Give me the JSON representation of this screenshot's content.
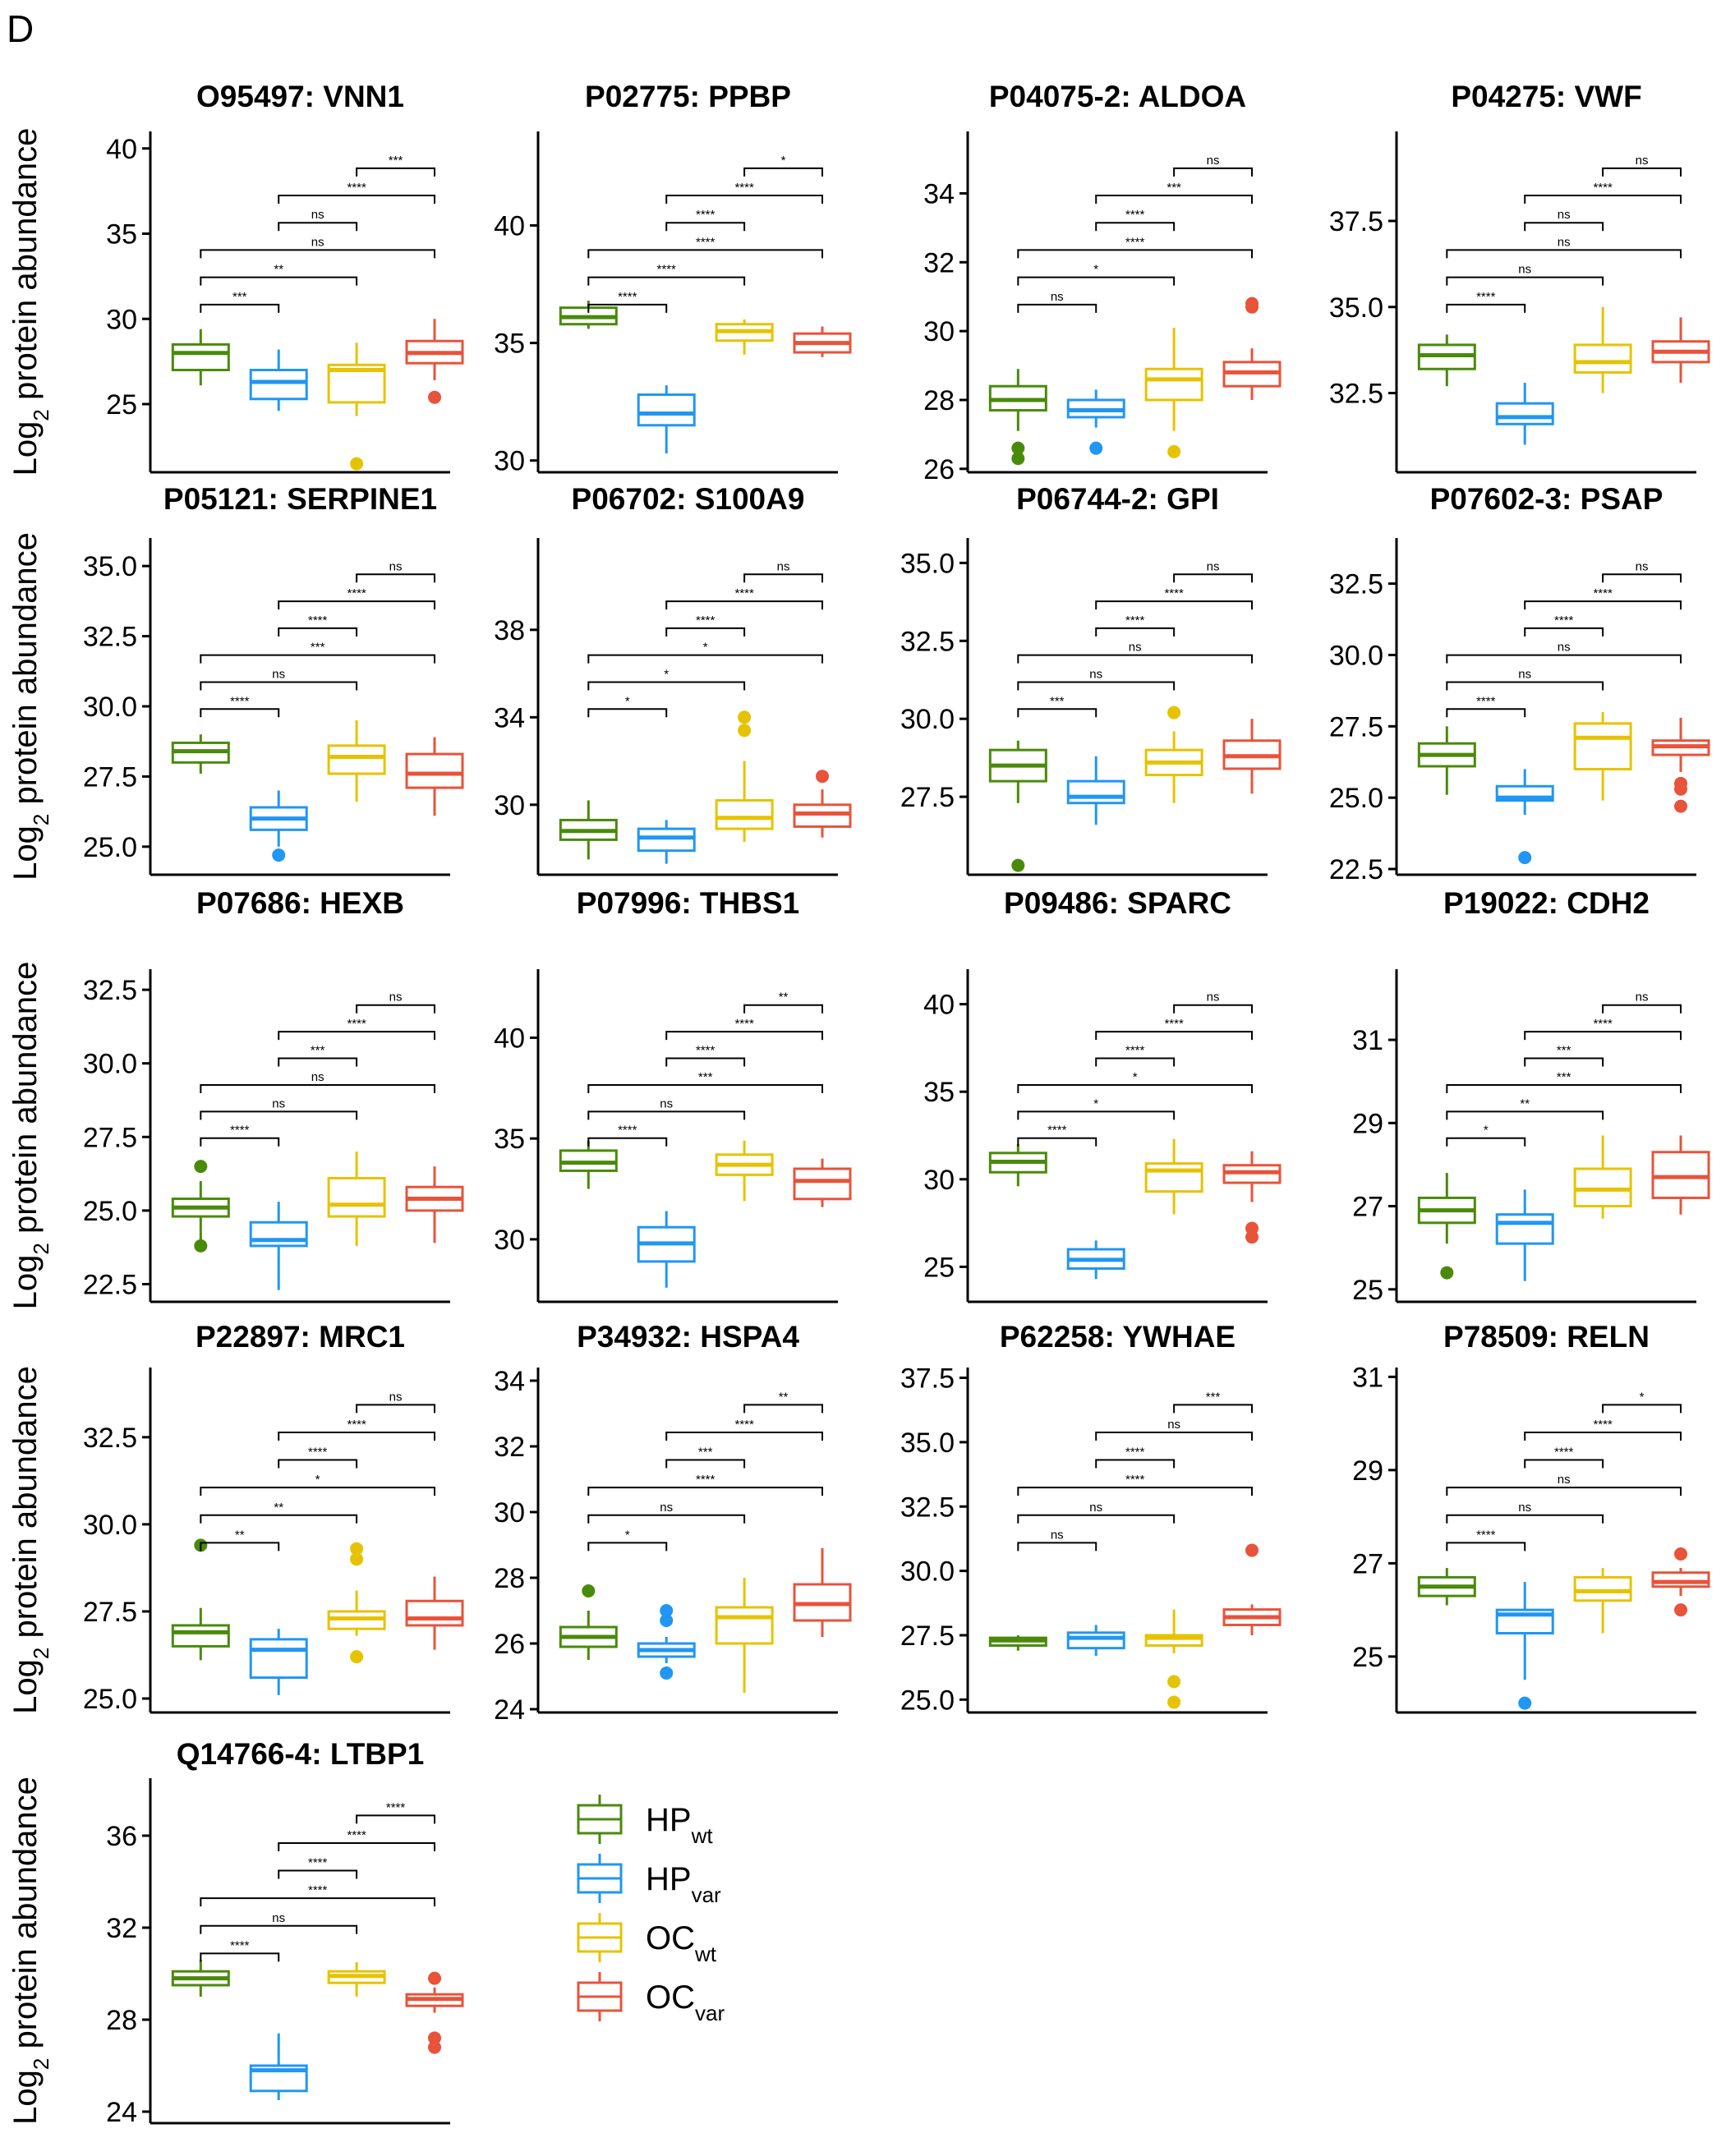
{
  "panel_label": "D",
  "colors": {
    "HPwt": "#4a8a0b",
    "HPvar": "#2196f3",
    "OCwt": "#e6c300",
    "OCvar": "#e8533a"
  },
  "legend": [
    {
      "key": "HPwt",
      "base": "HP",
      "sub": "wt"
    },
    {
      "key": "HPvar",
      "base": "HP",
      "sub": "var"
    },
    {
      "key": "OCwt",
      "base": "OC",
      "sub": "wt"
    },
    {
      "key": "OCvar",
      "base": "OC",
      "sub": "var"
    }
  ],
  "ylabel": {
    "base": "Log",
    "sub": "2",
    "rest": " protein abundance"
  },
  "comparison_pairs": [
    [
      0,
      1
    ],
    [
      0,
      2
    ],
    [
      0,
      3
    ],
    [
      1,
      2
    ],
    [
      1,
      3
    ],
    [
      2,
      3
    ]
  ],
  "chart_data": [
    {
      "type": "box",
      "title": "O95497: VNN1",
      "ylim": [
        21,
        41
      ],
      "yticks": [
        25,
        30,
        35,
        40
      ],
      "ytick_labels": [
        "25",
        "30",
        "35",
        "40"
      ],
      "groups": [
        {
          "q1": 27,
          "median": 28,
          "q3": 28.5,
          "lo": 26.1,
          "hi": 29.4,
          "out": []
        },
        {
          "q1": 25.3,
          "median": 26.3,
          "q3": 27.0,
          "lo": 24.6,
          "hi": 28.2,
          "out": []
        },
        {
          "q1": 25.1,
          "median": 27.0,
          "q3": 27.3,
          "lo": 24.3,
          "hi": 28.6,
          "out": [
            21.5
          ]
        },
        {
          "q1": 27.4,
          "median": 28.0,
          "q3": 28.7,
          "lo": 26.4,
          "hi": 30.0,
          "out": [
            25.4
          ]
        }
      ],
      "sig": [
        "***",
        "**",
        "ns",
        "ns",
        "****",
        "***"
      ]
    },
    {
      "type": "box",
      "title": "P02775: PPBP",
      "ylim": [
        29.5,
        44
      ],
      "yticks": [
        30,
        35,
        40
      ],
      "ytick_labels": [
        "30",
        "35",
        "40"
      ],
      "groups": [
        {
          "q1": 35.8,
          "median": 36.1,
          "q3": 36.5,
          "lo": 35.6,
          "hi": 36.8,
          "out": []
        },
        {
          "q1": 31.5,
          "median": 32.0,
          "q3": 32.8,
          "lo": 30.3,
          "hi": 33.2,
          "out": []
        },
        {
          "q1": 35.1,
          "median": 35.5,
          "q3": 35.8,
          "lo": 34.5,
          "hi": 36.0,
          "out": []
        },
        {
          "q1": 34.6,
          "median": 35.0,
          "q3": 35.4,
          "lo": 34.4,
          "hi": 35.7,
          "out": []
        }
      ],
      "sig": [
        "****",
        "****",
        "****",
        "****",
        "****",
        "*"
      ]
    },
    {
      "type": "box",
      "title": "P04075-2: ALDOA",
      "ylim": [
        25.9,
        35.8
      ],
      "yticks": [
        26,
        28,
        30,
        32,
        34
      ],
      "ytick_labels": [
        "26",
        "28",
        "30",
        "32",
        "34"
      ],
      "groups": [
        {
          "q1": 27.7,
          "median": 28.0,
          "q3": 28.4,
          "lo": 27.1,
          "hi": 28.9,
          "out": [
            26.6,
            26.3
          ]
        },
        {
          "q1": 27.5,
          "median": 27.7,
          "q3": 28.0,
          "lo": 27.2,
          "hi": 28.3,
          "out": [
            26.6
          ]
        },
        {
          "q1": 28.0,
          "median": 28.6,
          "q3": 28.9,
          "lo": 27.1,
          "hi": 30.1,
          "out": [
            26.5
          ]
        },
        {
          "q1": 28.4,
          "median": 28.8,
          "q3": 29.1,
          "lo": 28.0,
          "hi": 29.5,
          "out": [
            30.7,
            30.8
          ]
        }
      ],
      "sig": [
        "ns",
        "*",
        "****",
        "****",
        "***",
        "ns"
      ]
    },
    {
      "type": "box",
      "title": "P04275: VWF",
      "ylim": [
        30.2,
        40.1
      ],
      "yticks": [
        32.5,
        35.0,
        37.5
      ],
      "ytick_labels": [
        "32.5",
        "35.0",
        "37.5"
      ],
      "groups": [
        {
          "q1": 33.2,
          "median": 33.6,
          "q3": 33.9,
          "lo": 32.7,
          "hi": 34.2,
          "out": []
        },
        {
          "q1": 31.6,
          "median": 31.8,
          "q3": 32.2,
          "lo": 31.0,
          "hi": 32.8,
          "out": []
        },
        {
          "q1": 33.1,
          "median": 33.4,
          "q3": 33.9,
          "lo": 32.5,
          "hi": 35.0,
          "out": []
        },
        {
          "q1": 33.4,
          "median": 33.7,
          "q3": 34.0,
          "lo": 32.8,
          "hi": 34.7,
          "out": []
        }
      ],
      "sig": [
        "****",
        "ns",
        "ns",
        "ns",
        "****",
        "ns"
      ]
    },
    {
      "type": "box",
      "title": "P05121: SERPINE1",
      "ylim": [
        24.0,
        36.0
      ],
      "yticks": [
        25.0,
        27.5,
        30.0,
        32.5,
        35.0
      ],
      "ytick_labels": [
        "25.0",
        "27.5",
        "30.0",
        "32.5",
        "35.0"
      ],
      "groups": [
        {
          "q1": 28.0,
          "median": 28.4,
          "q3": 28.7,
          "lo": 27.6,
          "hi": 29.0,
          "out": []
        },
        {
          "q1": 25.6,
          "median": 26.0,
          "q3": 26.4,
          "lo": 25.0,
          "hi": 27.0,
          "out": [
            24.7
          ]
        },
        {
          "q1": 27.6,
          "median": 28.2,
          "q3": 28.6,
          "lo": 26.6,
          "hi": 29.5,
          "out": []
        },
        {
          "q1": 27.1,
          "median": 27.6,
          "q3": 28.3,
          "lo": 26.1,
          "hi": 28.9,
          "out": []
        }
      ],
      "sig": [
        "****",
        "ns",
        "***",
        "****",
        "****",
        "ns"
      ]
    },
    {
      "type": "box",
      "title": "P06702: S100A9",
      "ylim": [
        26.8,
        42.2
      ],
      "yticks": [
        30,
        34,
        38
      ],
      "ytick_labels": [
        "30",
        "34",
        "38"
      ],
      "groups": [
        {
          "q1": 28.4,
          "median": 28.8,
          "q3": 29.3,
          "lo": 27.5,
          "hi": 30.2,
          "out": []
        },
        {
          "q1": 27.9,
          "median": 28.5,
          "q3": 28.9,
          "lo": 27.3,
          "hi": 29.3,
          "out": []
        },
        {
          "q1": 28.9,
          "median": 29.4,
          "q3": 30.2,
          "lo": 28.3,
          "hi": 32.0,
          "out": [
            34.0,
            33.4
          ]
        },
        {
          "q1": 29.0,
          "median": 29.6,
          "q3": 30.0,
          "lo": 28.5,
          "hi": 30.7,
          "out": [
            31.3
          ]
        }
      ],
      "sig": [
        "*",
        "*",
        "*",
        "****",
        "****",
        "ns"
      ]
    },
    {
      "type": "box",
      "title": "P06744-2: GPI",
      "ylim": [
        25.0,
        35.8
      ],
      "yticks": [
        27.5,
        30.0,
        32.5,
        35.0
      ],
      "ytick_labels": [
        "27.5",
        "30.0",
        "32.5",
        "35.0"
      ],
      "groups": [
        {
          "q1": 28.0,
          "median": 28.5,
          "q3": 29.0,
          "lo": 27.3,
          "hi": 29.3,
          "out": [
            25.3
          ]
        },
        {
          "q1": 27.3,
          "median": 27.5,
          "q3": 28.0,
          "lo": 26.6,
          "hi": 28.8,
          "out": []
        },
        {
          "q1": 28.2,
          "median": 28.6,
          "q3": 29.0,
          "lo": 27.3,
          "hi": 29.6,
          "out": [
            30.2
          ]
        },
        {
          "q1": 28.4,
          "median": 28.8,
          "q3": 29.3,
          "lo": 27.6,
          "hi": 30.0,
          "out": []
        }
      ],
      "sig": [
        "***",
        "ns",
        "ns",
        "****",
        "****",
        "ns"
      ]
    },
    {
      "type": "box",
      "title": "P07602-3: PSAP",
      "ylim": [
        22.3,
        34.1
      ],
      "yticks": [
        22.5,
        25.0,
        27.5,
        30.0,
        32.5
      ],
      "ytick_labels": [
        "22.5",
        "25.0",
        "27.5",
        "30.0",
        "32.5"
      ],
      "groups": [
        {
          "q1": 26.1,
          "median": 26.5,
          "q3": 26.9,
          "lo": 25.1,
          "hi": 27.5,
          "out": []
        },
        {
          "q1": 24.9,
          "median": 25.0,
          "q3": 25.4,
          "lo": 24.4,
          "hi": 26.0,
          "out": [
            22.9
          ]
        },
        {
          "q1": 26.0,
          "median": 27.1,
          "q3": 27.6,
          "lo": 24.9,
          "hi": 28.0,
          "out": []
        },
        {
          "q1": 26.5,
          "median": 26.8,
          "q3": 27.0,
          "lo": 25.9,
          "hi": 27.8,
          "out": [
            25.5,
            25.3,
            24.7
          ]
        }
      ],
      "sig": [
        "****",
        "ns",
        "ns",
        "****",
        "****",
        "ns"
      ]
    },
    {
      "type": "box",
      "title": "P07686: HEXB",
      "ylim": [
        21.9,
        33.2
      ],
      "yticks": [
        22.5,
        25.0,
        27.5,
        30.0,
        32.5
      ],
      "ytick_labels": [
        "22.5",
        "25.0",
        "27.5",
        "30.0",
        "32.5"
      ],
      "groups": [
        {
          "q1": 24.8,
          "median": 25.1,
          "q3": 25.4,
          "lo": 24.0,
          "hi": 26.0,
          "out": [
            26.5,
            23.8
          ]
        },
        {
          "q1": 23.8,
          "median": 24.0,
          "q3": 24.6,
          "lo": 22.3,
          "hi": 25.3,
          "out": []
        },
        {
          "q1": 24.8,
          "median": 25.2,
          "q3": 26.1,
          "lo": 23.8,
          "hi": 27.0,
          "out": []
        },
        {
          "q1": 25.0,
          "median": 25.4,
          "q3": 25.8,
          "lo": 23.9,
          "hi": 26.5,
          "out": []
        }
      ],
      "sig": [
        "****",
        "ns",
        "ns",
        "***",
        "****",
        "ns"
      ]
    },
    {
      "type": "box",
      "title": "P07996: THBS1",
      "ylim": [
        26.9,
        43.4
      ],
      "yticks": [
        30,
        35,
        40
      ],
      "ytick_labels": [
        "30",
        "35",
        "40"
      ],
      "groups": [
        {
          "q1": 33.4,
          "median": 33.8,
          "q3": 34.4,
          "lo": 32.5,
          "hi": 34.9,
          "out": []
        },
        {
          "q1": 28.9,
          "median": 29.8,
          "q3": 30.6,
          "lo": 27.6,
          "hi": 31.4,
          "out": []
        },
        {
          "q1": 33.2,
          "median": 33.7,
          "q3": 34.2,
          "lo": 31.9,
          "hi": 34.9,
          "out": []
        },
        {
          "q1": 32.0,
          "median": 32.9,
          "q3": 33.5,
          "lo": 31.6,
          "hi": 34.0,
          "out": []
        }
      ],
      "sig": [
        "****",
        "ns",
        "***",
        "****",
        "****",
        "**"
      ]
    },
    {
      "type": "box",
      "title": "P09486: SPARC",
      "ylim": [
        23.0,
        42.0
      ],
      "yticks": [
        25,
        30,
        35,
        40
      ],
      "ytick_labels": [
        "25",
        "30",
        "35",
        "40"
      ],
      "groups": [
        {
          "q1": 30.4,
          "median": 31.0,
          "q3": 31.5,
          "lo": 29.6,
          "hi": 32.0,
          "out": []
        },
        {
          "q1": 24.9,
          "median": 25.4,
          "q3": 26.0,
          "lo": 24.3,
          "hi": 26.5,
          "out": []
        },
        {
          "q1": 29.3,
          "median": 30.5,
          "q3": 30.9,
          "lo": 28.0,
          "hi": 32.3,
          "out": []
        },
        {
          "q1": 29.8,
          "median": 30.4,
          "q3": 30.8,
          "lo": 28.7,
          "hi": 31.6,
          "out": [
            27.2,
            26.7
          ]
        }
      ],
      "sig": [
        "****",
        "*",
        "*",
        "****",
        "****",
        "ns"
      ]
    },
    {
      "type": "box",
      "title": "P19022: CDH2",
      "ylim": [
        24.7,
        32.7
      ],
      "yticks": [
        25,
        27,
        29,
        31
      ],
      "ytick_labels": [
        "25",
        "27",
        "29",
        "31"
      ],
      "groups": [
        {
          "q1": 26.6,
          "median": 26.9,
          "q3": 27.2,
          "lo": 26.1,
          "hi": 27.8,
          "out": [
            25.4
          ]
        },
        {
          "q1": 26.1,
          "median": 26.6,
          "q3": 26.8,
          "lo": 25.2,
          "hi": 27.4,
          "out": []
        },
        {
          "q1": 27.0,
          "median": 27.4,
          "q3": 27.9,
          "lo": 26.7,
          "hi": 28.7,
          "out": []
        },
        {
          "q1": 27.2,
          "median": 27.7,
          "q3": 28.3,
          "lo": 26.8,
          "hi": 28.7,
          "out": []
        }
      ],
      "sig": [
        "*",
        "**",
        "***",
        "***",
        "****",
        "ns"
      ]
    },
    {
      "type": "box",
      "title": "P22897: MRC1",
      "ylim": [
        24.6,
        34.5
      ],
      "yticks": [
        25.0,
        27.5,
        30.0,
        32.5
      ],
      "ytick_labels": [
        "25.0",
        "27.5",
        "30.0",
        "32.5"
      ],
      "groups": [
        {
          "q1": 26.5,
          "median": 26.9,
          "q3": 27.1,
          "lo": 26.1,
          "hi": 27.6,
          "out": [
            29.4
          ]
        },
        {
          "q1": 25.6,
          "median": 26.4,
          "q3": 26.7,
          "lo": 25.1,
          "hi": 27.0,
          "out": []
        },
        {
          "q1": 27.0,
          "median": 27.3,
          "q3": 27.5,
          "lo": 26.8,
          "hi": 28.1,
          "out": [
            29.3,
            29.0,
            26.2
          ]
        },
        {
          "q1": 27.1,
          "median": 27.3,
          "q3": 27.8,
          "lo": 26.4,
          "hi": 28.5,
          "out": []
        }
      ],
      "sig": [
        "**",
        "**",
        "*",
        "****",
        "****",
        "ns"
      ]
    },
    {
      "type": "box",
      "title": "P34932: HSPA4",
      "ylim": [
        23.9,
        34.4
      ],
      "yticks": [
        24,
        26,
        28,
        30,
        32,
        34
      ],
      "ytick_labels": [
        "24",
        "26",
        "28",
        "30",
        "32",
        "34"
      ],
      "groups": [
        {
          "q1": 25.9,
          "median": 26.2,
          "q3": 26.5,
          "lo": 25.5,
          "hi": 27.0,
          "out": [
            27.6
          ]
        },
        {
          "q1": 25.6,
          "median": 25.8,
          "q3": 26.0,
          "lo": 25.4,
          "hi": 26.2,
          "out": [
            27.0,
            26.7,
            25.1
          ]
        },
        {
          "q1": 26.0,
          "median": 26.8,
          "q3": 27.1,
          "lo": 24.5,
          "hi": 28.0,
          "out": []
        },
        {
          "q1": 26.7,
          "median": 27.2,
          "q3": 27.8,
          "lo": 26.2,
          "hi": 28.9,
          "out": []
        }
      ],
      "sig": [
        "*",
        "ns",
        "****",
        "***",
        "****",
        "**"
      ]
    },
    {
      "type": "box",
      "title": "P62258: YWHAE",
      "ylim": [
        24.5,
        37.9
      ],
      "yticks": [
        25.0,
        27.5,
        30.0,
        32.5,
        35.0,
        37.5
      ],
      "ytick_labels": [
        "25.0",
        "27.5",
        "30.0",
        "32.5",
        "35.0",
        "37.5"
      ],
      "groups": [
        {
          "q1": 27.1,
          "median": 27.3,
          "q3": 27.4,
          "lo": 26.9,
          "hi": 27.5,
          "out": []
        },
        {
          "q1": 27.0,
          "median": 27.4,
          "q3": 27.6,
          "lo": 26.7,
          "hi": 27.9,
          "out": []
        },
        {
          "q1": 27.1,
          "median": 27.4,
          "q3": 27.5,
          "lo": 26.8,
          "hi": 28.5,
          "out": [
            25.7,
            24.9
          ]
        },
        {
          "q1": 27.9,
          "median": 28.2,
          "q3": 28.5,
          "lo": 27.5,
          "hi": 28.7,
          "out": [
            30.8
          ]
        }
      ],
      "sig": [
        "ns",
        "ns",
        "****",
        "****",
        "ns",
        "***"
      ]
    },
    {
      "type": "box",
      "title": "P78509: RELN",
      "ylim": [
        23.8,
        31.2
      ],
      "yticks": [
        25,
        27,
        29,
        31
      ],
      "ytick_labels": [
        "25",
        "27",
        "29",
        "31"
      ],
      "groups": [
        {
          "q1": 26.3,
          "median": 26.5,
          "q3": 26.7,
          "lo": 26.1,
          "hi": 26.9,
          "out": []
        },
        {
          "q1": 25.5,
          "median": 25.9,
          "q3": 26.0,
          "lo": 24.5,
          "hi": 26.6,
          "out": [
            24.0
          ]
        },
        {
          "q1": 26.2,
          "median": 26.4,
          "q3": 26.7,
          "lo": 25.5,
          "hi": 26.9,
          "out": []
        },
        {
          "q1": 26.5,
          "median": 26.6,
          "q3": 26.8,
          "lo": 26.3,
          "hi": 26.9,
          "out": [
            27.2,
            26.0
          ]
        }
      ],
      "sig": [
        "****",
        "ns",
        "ns",
        "****",
        "****",
        "*"
      ]
    },
    {
      "type": "box",
      "title": "Q14766-4: LTBP1",
      "ylim": [
        23.5,
        38.5
      ],
      "yticks": [
        24,
        28,
        32,
        36
      ],
      "ytick_labels": [
        "24",
        "28",
        "32",
        "36"
      ],
      "groups": [
        {
          "q1": 29.5,
          "median": 29.8,
          "q3": 30.1,
          "lo": 29.0,
          "hi": 30.6,
          "out": []
        },
        {
          "q1": 24.9,
          "median": 25.8,
          "q3": 26.0,
          "lo": 24.5,
          "hi": 27.4,
          "out": []
        },
        {
          "q1": 29.6,
          "median": 29.9,
          "q3": 30.1,
          "lo": 29.0,
          "hi": 30.5,
          "out": []
        },
        {
          "q1": 28.6,
          "median": 28.9,
          "q3": 29.1,
          "lo": 28.3,
          "hi": 29.4,
          "out": [
            29.8,
            27.2,
            26.8
          ]
        }
      ],
      "sig": [
        "****",
        "ns",
        "****",
        "****",
        "****",
        "****"
      ]
    }
  ]
}
